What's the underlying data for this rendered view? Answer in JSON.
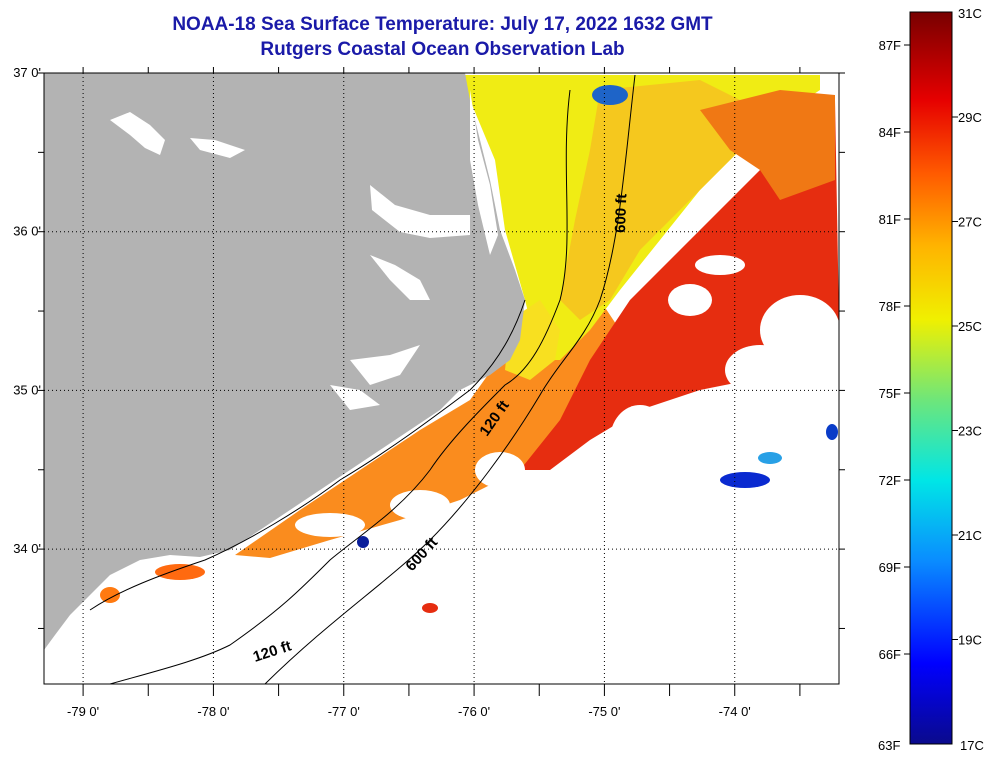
{
  "title": {
    "line1": "NOAA-18 Sea Surface Temperature:  July 17, 2022 1632 GMT",
    "line2": "Rutgers Coastal Ocean Observation Lab"
  },
  "map": {
    "lon_range": [
      -79.3,
      -73.2
    ],
    "lat_range": [
      33.15,
      37.0
    ],
    "lat_ticks": [
      {
        "value": 37.0,
        "label": "37 0'"
      },
      {
        "value": 36.0,
        "label": "36 0'"
      },
      {
        "value": 35.0,
        "label": "35 0'"
      },
      {
        "value": 34.0,
        "label": "34 0'"
      }
    ],
    "lon_ticks": [
      {
        "value": -79.0,
        "label": "-79 0'"
      },
      {
        "value": -78.0,
        "label": "-78 0'"
      },
      {
        "value": -77.0,
        "label": "-77 0'"
      },
      {
        "value": -76.0,
        "label": "-76 0'"
      },
      {
        "value": -75.0,
        "label": "-75 0'"
      },
      {
        "value": -74.0,
        "label": "-74 0'"
      }
    ],
    "contour_labels": [
      "600 ft",
      "120 ft",
      "600 ft",
      "120 ft"
    ],
    "colors": {
      "land": "#b3b3b3",
      "no_data": "#ffffff",
      "contour": "#000000"
    }
  },
  "colorbar": {
    "top_celsius": "31C",
    "bottom_celsius": "17C",
    "top_fahrenheit": "",
    "bottom_fahrenheit": "63F",
    "fahrenheit_labels": [
      "87F",
      "84F",
      "81F",
      "78F",
      "75F",
      "72F",
      "69F",
      "66F"
    ],
    "celsius_labels": [
      "29C",
      "27C",
      "25C",
      "23C",
      "21C",
      "19C"
    ],
    "stops": [
      "#0a0a8c",
      "#0000ff",
      "#0a8cff",
      "#00e6e6",
      "#6ee67a",
      "#f0f000",
      "#ffb400",
      "#ff5a00",
      "#e60000",
      "#780000"
    ]
  }
}
